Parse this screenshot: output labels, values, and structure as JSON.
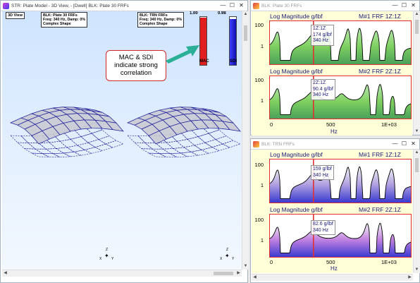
{
  "colors": {
    "accent_red": "#e03030",
    "accent_blue": "#2a2ad0",
    "callout_arrow": "#2bb097",
    "plate_fill": "#c8c8d0",
    "plate_line": "#1a1a9a"
  },
  "main_window": {
    "title": "STR: Plate Model - 3D View, - [Dwell] BLK: Plate 30 FRFs",
    "view_button": "3D View",
    "left_label": [
      "BLK: Plate 30 FRFs",
      "Freq: 340 Hz, Damp: 0%",
      "Complex Shape"
    ],
    "right_label": [
      "BLK: TRN FRFs",
      "Freq: 340 Hz, Damp: 0%",
      "Complex Shape"
    ],
    "mac_bar": {
      "top_label": "1.00",
      "bottom_label": "MAC",
      "level": 0.98
    },
    "sdi_bar": {
      "top_label": "0.98",
      "bottom_label": "SDI",
      "level": 0.96
    },
    "callout": [
      "MAC & SDI",
      "indicate strong",
      "correlation"
    ],
    "axes": {
      "z": "Z",
      "x": "X",
      "y": "Y"
    }
  },
  "upper_frf_window": {
    "title": "BLK: Plate 30 FRFs",
    "plots": [
      {
        "title": "Log Magnitude g/lbf",
        "id": "M#1 FRF 1Z:1Z",
        "readout": [
          "1Z:1Z",
          "174 g/lbf",
          "340 Hz"
        ]
      },
      {
        "title": "Log Magnitude g/lbf",
        "id": "M#2 FRF 2Z:1Z",
        "readout": [
          "2Z:1Z",
          "90.4 g/lbf",
          "340 Hz"
        ]
      }
    ],
    "yticks": [
      "100",
      "1"
    ],
    "xticks": [
      "0",
      "500",
      "1E+03"
    ],
    "xlabel": "Hz"
  },
  "lower_frf_window": {
    "title": "BLK: TRN FRFs",
    "plots": [
      {
        "title": "Log Magnitude g/lbf",
        "id": "M#1 FRF 1Z:1Z",
        "readout": [
          "159 g/lbf",
          "340 Hz"
        ]
      },
      {
        "title": "Log Magnitude g/lbf",
        "id": "M#2 FRF 2Z:1Z",
        "readout": [
          "82.6 g/lbf",
          "340 Hz"
        ]
      }
    ],
    "yticks": [
      "100",
      "1"
    ],
    "xticks": [
      "0",
      "500",
      "1E+03"
    ],
    "xlabel": "Hz"
  },
  "chart_data": [
    {
      "type": "area",
      "title": "Log Magnitude g/lbf",
      "series": [
        {
          "name": "M#1 FRF 1Z:1Z"
        }
      ],
      "xlabel": "Hz",
      "xlim": [
        0,
        1100
      ],
      "cursor_x": 340,
      "cursor_value": "174 g/lbf"
    },
    {
      "type": "area",
      "title": "Log Magnitude g/lbf",
      "series": [
        {
          "name": "M#2 FRF 2Z:1Z"
        }
      ],
      "xlabel": "Hz",
      "xlim": [
        0,
        1100
      ],
      "cursor_x": 340,
      "cursor_value": "90.4 g/lbf"
    },
    {
      "type": "area",
      "title": "Log Magnitude g/lbf",
      "series": [
        {
          "name": "M#1 FRF 1Z:1Z"
        }
      ],
      "xlabel": "Hz",
      "xlim": [
        0,
        1100
      ],
      "cursor_x": 340,
      "cursor_value": "159 g/lbf"
    },
    {
      "type": "area",
      "title": "Log Magnitude g/lbf",
      "series": [
        {
          "name": "M#2 FRF 2Z:1Z"
        }
      ],
      "xlabel": "Hz",
      "xlim": [
        0,
        1100
      ],
      "cursor_x": 340,
      "cursor_value": "82.6 g/lbf"
    }
  ]
}
